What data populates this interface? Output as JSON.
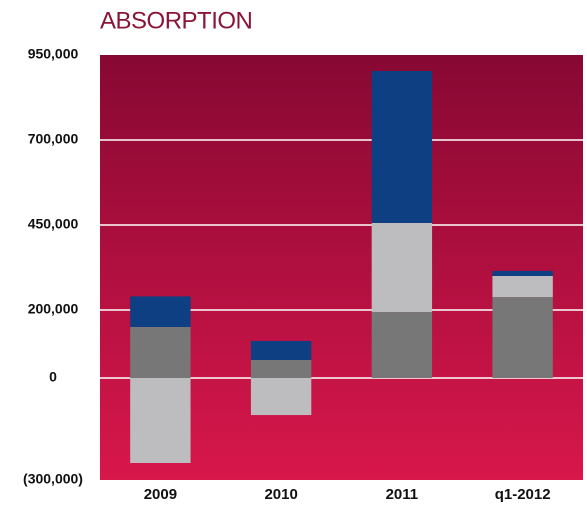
{
  "chart_data": {
    "type": "stacked_bar",
    "title": "ABSORPTION",
    "categories": [
      "2009",
      "2010",
      "2011",
      "q1-2012"
    ],
    "series": [
      {
        "color": "#777777",
        "values": [
          150000,
          53000,
          194000,
          238000
        ]
      },
      {
        "color": "#bdbdc0",
        "values": [
          -250000,
          -109000,
          262000,
          62000
        ]
      },
      {
        "color": "#0d3f82",
        "values": [
          90000,
          56000,
          447000,
          15000
        ]
      }
    ],
    "ylim": [
      -300000,
      950000
    ],
    "yticks": [
      {
        "value": 950000,
        "label": "950,000"
      },
      {
        "value": 700000,
        "label": "700,000"
      },
      {
        "value": 450000,
        "label": "450,000"
      },
      {
        "value": 200000,
        "label": "200,000"
      },
      0,
      {
        "value": -300000,
        "label": "(300,000)"
      }
    ],
    "grid": true
  }
}
